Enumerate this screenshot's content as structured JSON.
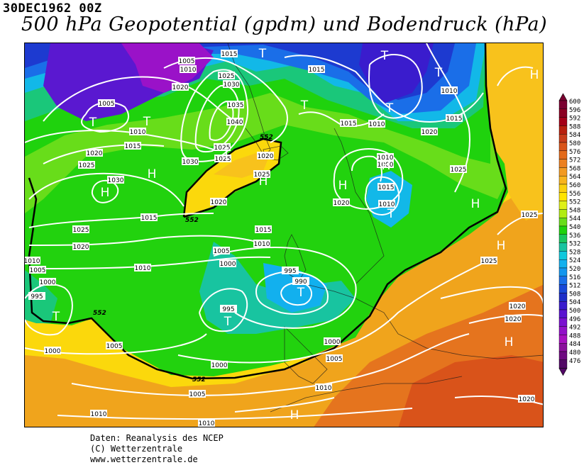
{
  "header": {
    "datetime": "30DEC1962 00Z",
    "title": "500 hPa Geopotential (gpdm) und Bodendruck (hPa)"
  },
  "legend": {
    "levels": [
      "600",
      "596",
      "592",
      "588",
      "584",
      "580",
      "576",
      "572",
      "568",
      "564",
      "560",
      "556",
      "552",
      "548",
      "544",
      "540",
      "536",
      "532",
      "528",
      "524",
      "520",
      "516",
      "512",
      "508",
      "504",
      "500",
      "496",
      "492",
      "488",
      "484",
      "480",
      "476"
    ],
    "colors": [
      "#7a0030",
      "#8b0022",
      "#a40018",
      "#b8200f",
      "#c83c1a",
      "#d95419",
      "#e36a1a",
      "#ec8020",
      "#f29a22",
      "#f8b41e",
      "#fbd00e",
      "#ffe400",
      "#dff017",
      "#b1ec12",
      "#68dd1a",
      "#1fd20d",
      "#1ac75e",
      "#18c4a0",
      "#0fc8dd",
      "#12b0ee",
      "#1396ee",
      "#1a6ee8",
      "#1848d8",
      "#1d2ec8",
      "#3a1ccd",
      "#5a14d0",
      "#7a10d0",
      "#9210c8",
      "#a710c0",
      "#8a0f9c",
      "#6e0a80",
      "#520866"
    ]
  },
  "map": {
    "pressure_systems": [
      {
        "id": "t1",
        "label": "T"
      },
      {
        "id": "t2",
        "label": "T"
      },
      {
        "id": "t3",
        "label": "T"
      },
      {
        "id": "t4",
        "label": "T"
      },
      {
        "id": "t5",
        "label": "T"
      },
      {
        "id": "t6",
        "label": "T"
      },
      {
        "id": "t7",
        "label": "T"
      },
      {
        "id": "t8",
        "label": "T"
      },
      {
        "id": "t9",
        "label": "T"
      },
      {
        "id": "t10",
        "label": "T"
      },
      {
        "id": "t11",
        "label": "T"
      },
      {
        "id": "t12",
        "label": "T"
      },
      {
        "id": "h1",
        "label": "H"
      },
      {
        "id": "h2",
        "label": "H"
      },
      {
        "id": "h3",
        "label": "H"
      },
      {
        "id": "h4",
        "label": "H"
      },
      {
        "id": "h5",
        "label": "H"
      },
      {
        "id": "h6",
        "label": "H"
      },
      {
        "id": "h7",
        "label": "H"
      },
      {
        "id": "h8",
        "label": "H"
      },
      {
        "id": "h9",
        "label": "H"
      },
      {
        "id": "h10",
        "label": "H"
      }
    ],
    "isobar_labels": [
      {
        "id": "p1",
        "value": "1005"
      },
      {
        "id": "p2",
        "value": "1010"
      },
      {
        "id": "p3",
        "value": "1015"
      },
      {
        "id": "p4",
        "value": "1025"
      },
      {
        "id": "p5",
        "value": "1030"
      },
      {
        "id": "p6",
        "value": "1020"
      },
      {
        "id": "p7",
        "value": "1035"
      },
      {
        "id": "p8",
        "value": "1040"
      },
      {
        "id": "p9",
        "value": "1025"
      },
      {
        "id": "p10",
        "value": "1025"
      },
      {
        "id": "p11",
        "value": "1030"
      },
      {
        "id": "p12",
        "value": "1005"
      },
      {
        "id": "p13",
        "value": "1010"
      },
      {
        "id": "p14",
        "value": "1015"
      },
      {
        "id": "p15",
        "value": "1020"
      },
      {
        "id": "p16",
        "value": "1025"
      },
      {
        "id": "p17",
        "value": "1030"
      },
      {
        "id": "p18",
        "value": "1020"
      },
      {
        "id": "p19",
        "value": "1025"
      },
      {
        "id": "p20",
        "value": "1015"
      },
      {
        "id": "p21",
        "value": "1010"
      },
      {
        "id": "p22",
        "value": "1015"
      },
      {
        "id": "p23",
        "value": "1010"
      },
      {
        "id": "p24",
        "value": "1020"
      },
      {
        "id": "p25",
        "value": "1015"
      },
      {
        "id": "p26",
        "value": "1010"
      },
      {
        "id": "p27",
        "value": "1000"
      },
      {
        "id": "p28",
        "value": "1015"
      },
      {
        "id": "p29",
        "value": "1010"
      },
      {
        "id": "p30",
        "value": "1020"
      },
      {
        "id": "p31",
        "value": "1025"
      },
      {
        "id": "p32",
        "value": "1025"
      },
      {
        "id": "p33",
        "value": "1020"
      },
      {
        "id": "p34",
        "value": "1015"
      },
      {
        "id": "p35",
        "value": "1025"
      },
      {
        "id": "p36",
        "value": "1020"
      },
      {
        "id": "p37",
        "value": "1015"
      },
      {
        "id": "p38",
        "value": "1010"
      },
      {
        "id": "p39",
        "value": "1005"
      },
      {
        "id": "p40",
        "value": "1000"
      },
      {
        "id": "p41",
        "value": "1010"
      },
      {
        "id": "p42",
        "value": "1005"
      },
      {
        "id": "p43",
        "value": "1000"
      },
      {
        "id": "p44",
        "value": "995"
      },
      {
        "id": "p45",
        "value": "1010"
      },
      {
        "id": "p46",
        "value": "1005"
      },
      {
        "id": "p47",
        "value": "1000"
      },
      {
        "id": "p48",
        "value": "995"
      },
      {
        "id": "p49",
        "value": "990"
      },
      {
        "id": "p50",
        "value": "995"
      },
      {
        "id": "p51",
        "value": "1000"
      },
      {
        "id": "p52",
        "value": "1005"
      },
      {
        "id": "p53",
        "value": "1000"
      },
      {
        "id": "p54",
        "value": "1005"
      },
      {
        "id": "p55",
        "value": "1010"
      },
      {
        "id": "p56",
        "value": "1010"
      },
      {
        "id": "p57",
        "value": "1010"
      },
      {
        "id": "p58",
        "value": "1020"
      },
      {
        "id": "p59",
        "value": "1020"
      },
      {
        "id": "p60",
        "value": "1020"
      },
      {
        "id": "p61",
        "value": "1025"
      }
    ],
    "contour_labels": [
      {
        "id": "c1",
        "value": "552"
      },
      {
        "id": "c2",
        "value": "552"
      },
      {
        "id": "c3",
        "value": "552"
      },
      {
        "id": "c4",
        "value": "552"
      }
    ]
  },
  "credits": {
    "line1": "Daten: Reanalysis des NCEP",
    "line2": "(C) Wetterzentrale",
    "line3": "www.wetterzentrale.de"
  }
}
